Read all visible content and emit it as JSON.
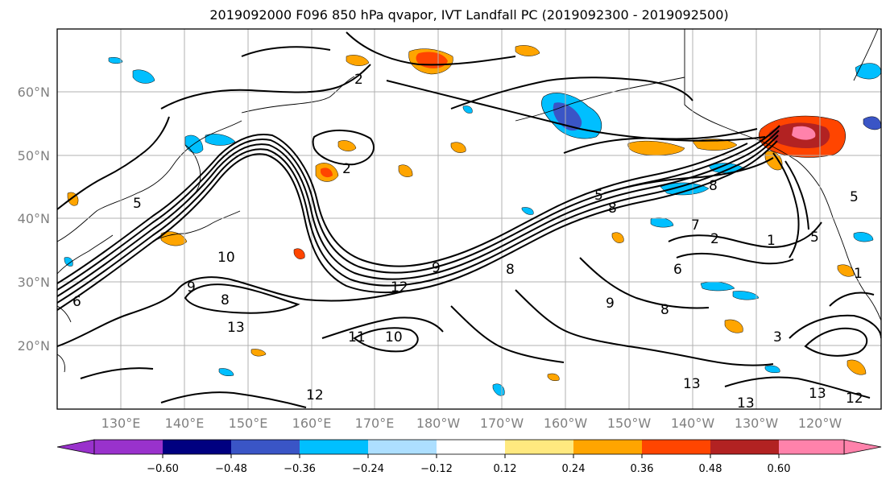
{
  "title": "2019092000 F096 850 hPa qvapor, IVT Landfall PC (2019092300 - 2019092500)",
  "lat_labels": [
    "60°N",
    "50°N",
    "40°N",
    "30°N",
    "20°N"
  ],
  "lon_labels": [
    "130°E",
    "140°E",
    "150°E",
    "160°E",
    "170°E",
    "180°W",
    "170°W",
    "160°W",
    "150°W",
    "140°W",
    "130°W",
    "120°W"
  ],
  "colorbar": {
    "colors": [
      "#9932CC",
      "#000080",
      "#3A55C6",
      "#00BFFF",
      "#ADDFFF",
      "#FFFFFF",
      "#FFE97F",
      "#FFA500",
      "#FF4500",
      "#B22222",
      "#FF82AB"
    ],
    "tick_labels": [
      "−0.60",
      "−0.48",
      "−0.36",
      "−0.24",
      "−0.12",
      "0.12",
      "0.24",
      "0.36",
      "0.48",
      "0.60"
    ]
  },
  "contour_labels": [
    "2",
    "2",
    "5",
    "5",
    "10",
    "9",
    "8",
    "13",
    "11",
    "12",
    "10",
    "9",
    "8",
    "8",
    "9",
    "8",
    "6",
    "7",
    "2",
    "1",
    "5",
    "3",
    "12",
    "13",
    "13",
    "13",
    "12",
    "5",
    "1",
    "8",
    "6"
  ],
  "colors": {
    "axis": "#000000",
    "grid": "#b0b0b0",
    "tick_text": "#808080"
  }
}
